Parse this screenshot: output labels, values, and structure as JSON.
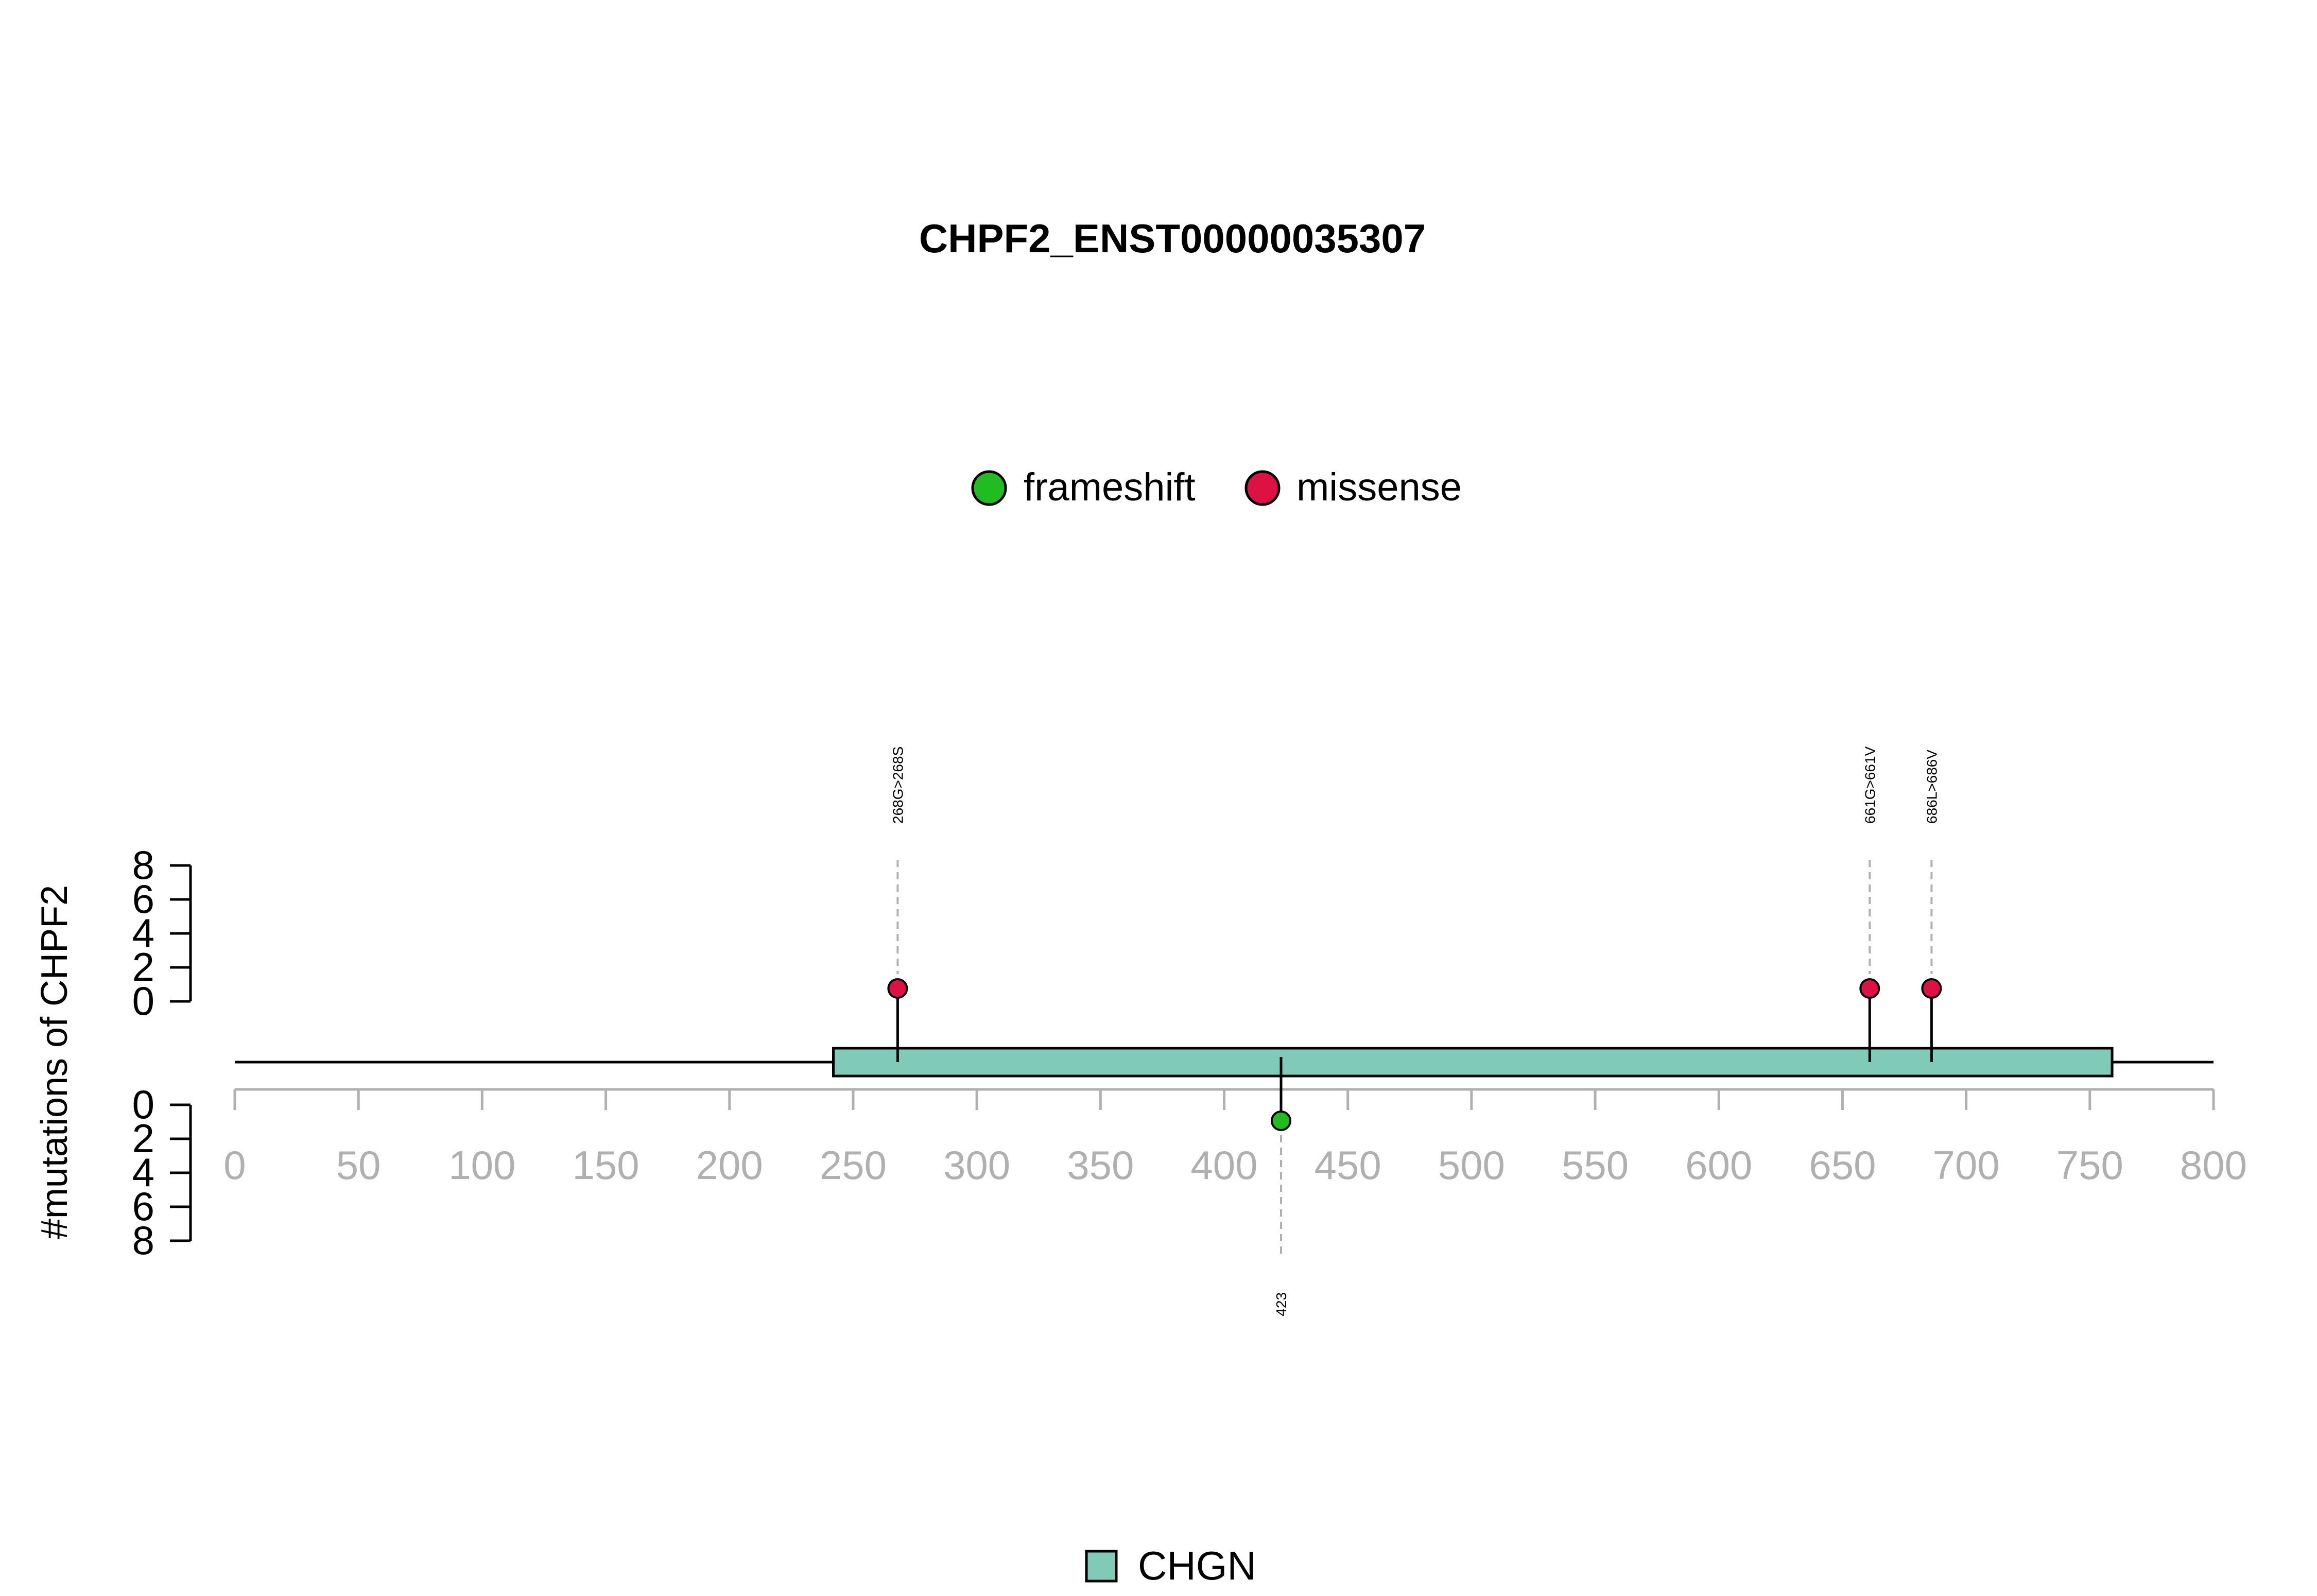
{
  "chart_data": {
    "type": "lollipop",
    "title": "CHPF2_ENST00000035307",
    "ylabel": "#mutations of CHPF2",
    "xlim": [
      0,
      800
    ],
    "x_ticks": [
      "0",
      "50",
      "100",
      "150",
      "200",
      "250",
      "300",
      "350",
      "400",
      "450",
      "500",
      "550",
      "600",
      "650",
      "700",
      "750",
      "800"
    ],
    "y_ticks_upper": [
      "0",
      "2",
      "4",
      "6",
      "8"
    ],
    "y_ticks_lower": [
      "0",
      "2",
      "4",
      "6",
      "8"
    ],
    "legend_types": [
      {
        "label": "frameshift",
        "color": "#22bb22"
      },
      {
        "label": "missense",
        "color": "#dd1144"
      }
    ],
    "domains": [
      {
        "name": "CHGN",
        "start": 242,
        "end": 759,
        "color": "#80cbb8"
      }
    ],
    "mutations": [
      {
        "position": 268,
        "count": 1,
        "label": "268G>268S",
        "type": "missense",
        "side": "up"
      },
      {
        "position": 661,
        "count": 1,
        "label": "661G>661V",
        "type": "missense",
        "side": "up"
      },
      {
        "position": 686,
        "count": 1,
        "label": "686L>686V",
        "type": "missense",
        "side": "up"
      },
      {
        "position": 423,
        "count": 1,
        "label": "423",
        "type": "frameshift",
        "side": "down"
      }
    ]
  }
}
